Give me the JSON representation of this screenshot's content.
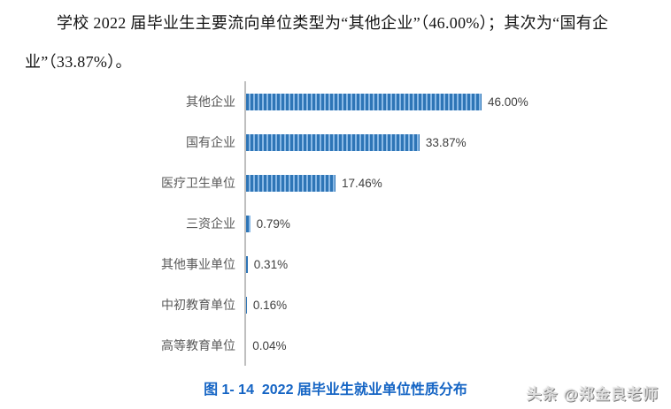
{
  "document": {
    "paragraph": "学校 2022 届毕业生主要流向单位类型为“其他企业”（46.00%）；其次为“国有企业”（33.87%）。",
    "caption": "图 1- 14  2022 届毕业生就业单位性质分布",
    "watermark": "头条 @郑金良老师"
  },
  "colors": {
    "bar_stripe_dark": "#2E75B6",
    "bar_stripe_light": "#8AB9E6",
    "axis_line": "#BFBFBF",
    "category_label": "#595959",
    "value_label": "#3F3F3F",
    "caption_blue": "#1464C4",
    "watermark_gray": "#DEDEDE"
  },
  "chart_data": {
    "type": "bar",
    "orientation": "horizontal",
    "title": "2022届毕业生就业单位性质分布",
    "categories": [
      "其他企业",
      "国有企业",
      "医疗卫生单位",
      "三资企业",
      "其他事业单位",
      "中初教育单位",
      "高等教育单位"
    ],
    "values": [
      46.0,
      33.87,
      17.46,
      0.79,
      0.31,
      0.16,
      0.04
    ],
    "value_labels": [
      "46.00%",
      "33.87%",
      "17.46%",
      "0.79%",
      "0.31%",
      "0.16%",
      "0.04%"
    ],
    "unit": "%",
    "xlabel": "",
    "ylabel": "",
    "xlim": [
      0,
      46
    ],
    "grid": false,
    "legend": false,
    "bar_fill": "vertical-stripe-pattern",
    "value_label_position": "end-of-bar"
  }
}
